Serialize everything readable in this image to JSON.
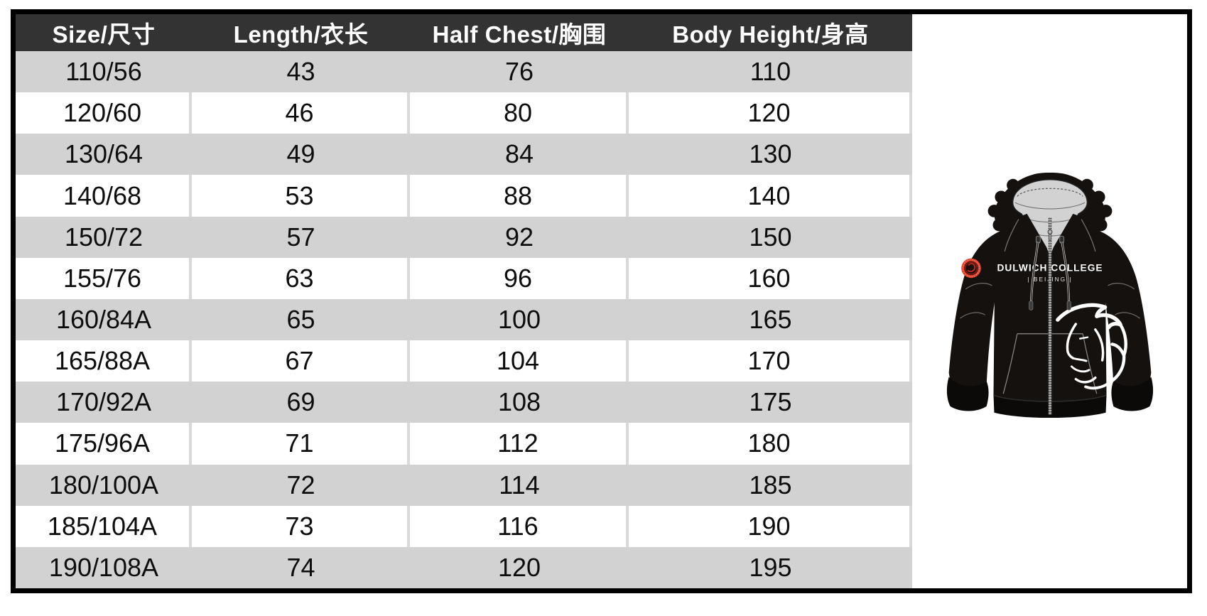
{
  "table": {
    "columns": [
      {
        "label": "Size/尺寸"
      },
      {
        "label": "Length/衣长"
      },
      {
        "label": "Half Chest/胸围"
      },
      {
        "label": "Body Height/身高"
      }
    ],
    "rows": [
      [
        "110/56",
        "43",
        "76",
        "110"
      ],
      [
        "120/60",
        "46",
        "80",
        "120"
      ],
      [
        "130/64",
        "49",
        "84",
        "130"
      ],
      [
        "140/68",
        "53",
        "88",
        "140"
      ],
      [
        "150/72",
        "57",
        "92",
        "150"
      ],
      [
        "155/76",
        "63",
        "96",
        "160"
      ],
      [
        "160/84A",
        "65",
        "100",
        "165"
      ],
      [
        "165/88A",
        "67",
        "104",
        "170"
      ],
      [
        "170/92A",
        "69",
        "108",
        "175"
      ],
      [
        "175/96A",
        "71",
        "112",
        "180"
      ],
      [
        "180/100A",
        "72",
        "114",
        "185"
      ],
      [
        "185/104A",
        "73",
        "116",
        "190"
      ],
      [
        "190/108A",
        "74",
        "120",
        "195"
      ]
    ]
  },
  "product": {
    "brand_line1": "DULWICH COLLEGE",
    "brand_line2": "| BEIJING |"
  },
  "colors": {
    "frame-border": "#000000",
    "header-bg": "#333333",
    "header-text": "#ffffff",
    "row-bg": "#ffffff",
    "row-alt-bg": "#d2d2d2",
    "cell-divider": "#d9d9d9",
    "text": "#0d0d0d",
    "hoodie-black": "#14110f",
    "hoodie-dark": "#0c0a09",
    "hood-lining": "#d2d2d2",
    "badge-red": "#e8442c",
    "logo-white": "#ffffff"
  }
}
